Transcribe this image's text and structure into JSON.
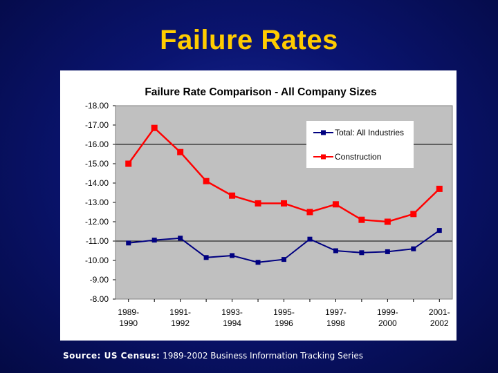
{
  "slide": {
    "title": "Failure Rates",
    "source_label": "Source: US Census:",
    "source_text": " 1989-2002 Business Information Tracking Series"
  },
  "chart_data": {
    "type": "line",
    "title": "Failure Rate Comparison - All Company Sizes",
    "xlabel": "",
    "ylabel": "",
    "categories": [
      [
        "1989-",
        "1990"
      ],
      [
        "",
        ""
      ],
      [
        "1991-",
        "1992"
      ],
      [
        "",
        ""
      ],
      [
        "1993-",
        "1994"
      ],
      [
        "",
        ""
      ],
      [
        "1995-",
        "1996"
      ],
      [
        "",
        ""
      ],
      [
        "1997-",
        "1998"
      ],
      [
        "",
        ""
      ],
      [
        "1999-",
        "2000"
      ],
      [
        "",
        ""
      ],
      [
        "2001-",
        "2002"
      ]
    ],
    "y_ticks": [
      "-18.00",
      "-17.00",
      "-16.00",
      "-15.00",
      "-14.00",
      "-13.00",
      "-12.00",
      "-11.00",
      "-10.00",
      "-9.00",
      "-8.00"
    ],
    "ylim": [
      -18,
      -8
    ],
    "y_axis": "reversed (-18.00 at top, -8.00 at bottom)",
    "grid": "horizontal lines at -16.00 and -11.00",
    "plot_background": "#c0c0c0",
    "legend_position": "top-right",
    "series": [
      {
        "name": "Total: All Industries",
        "color": "#000080",
        "marker": "square",
        "values": [
          -10.9,
          -11.05,
          -11.15,
          -10.15,
          -10.25,
          -9.9,
          -10.05,
          -11.1,
          -10.5,
          -10.4,
          -10.45,
          -10.6,
          -11.55
        ]
      },
      {
        "name": "Construction",
        "color": "#ff0000",
        "marker": "square",
        "values": [
          -15.0,
          -16.85,
          -15.6,
          -14.1,
          -13.35,
          -12.95,
          -12.95,
          -12.5,
          -12.9,
          -12.1,
          -12.0,
          -12.4,
          -13.7
        ]
      }
    ]
  }
}
